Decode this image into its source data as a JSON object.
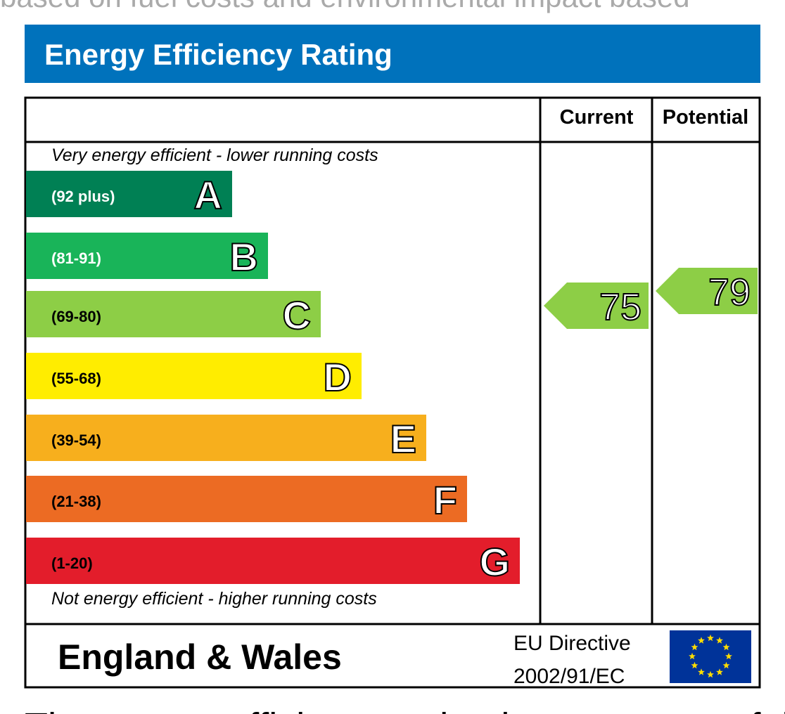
{
  "top_text": "based on fuel costs and environmental impact based",
  "header": {
    "title": "Energy Efficiency Rating"
  },
  "table": {
    "columns": [
      "Current",
      "Potential"
    ],
    "top_note": "Very energy efficient - lower running costs",
    "bands": [
      {
        "range": "(92 plus)",
        "letter": "A",
        "color": "#008054"
      },
      {
        "range": "(81-91)",
        "letter": "B",
        "color": "#19b459"
      },
      {
        "range": "(69-80)",
        "letter": "C",
        "color": "#8dce46"
      },
      {
        "range": "(55-68)",
        "letter": "D",
        "color": "#ffed00"
      },
      {
        "range": "(39-54)",
        "letter": "E",
        "color": "#f7af1d"
      },
      {
        "range": "(21-38)",
        "letter": "F",
        "color": "#ec6b23"
      },
      {
        "range": "(1-20)",
        "letter": "G",
        "color": "#e31d2b"
      }
    ],
    "bottom_note": "Not energy efficient - higher running costs",
    "current": {
      "value": 75,
      "color": "#8dce46"
    },
    "potential": {
      "value": 79,
      "color": "#8dce46"
    }
  },
  "footer": {
    "region": "England & Wales",
    "directive": [
      "EU Directive",
      "2002/91/EC"
    ]
  },
  "bottom_text": "The energy efficiency rating is a measure of the"
}
